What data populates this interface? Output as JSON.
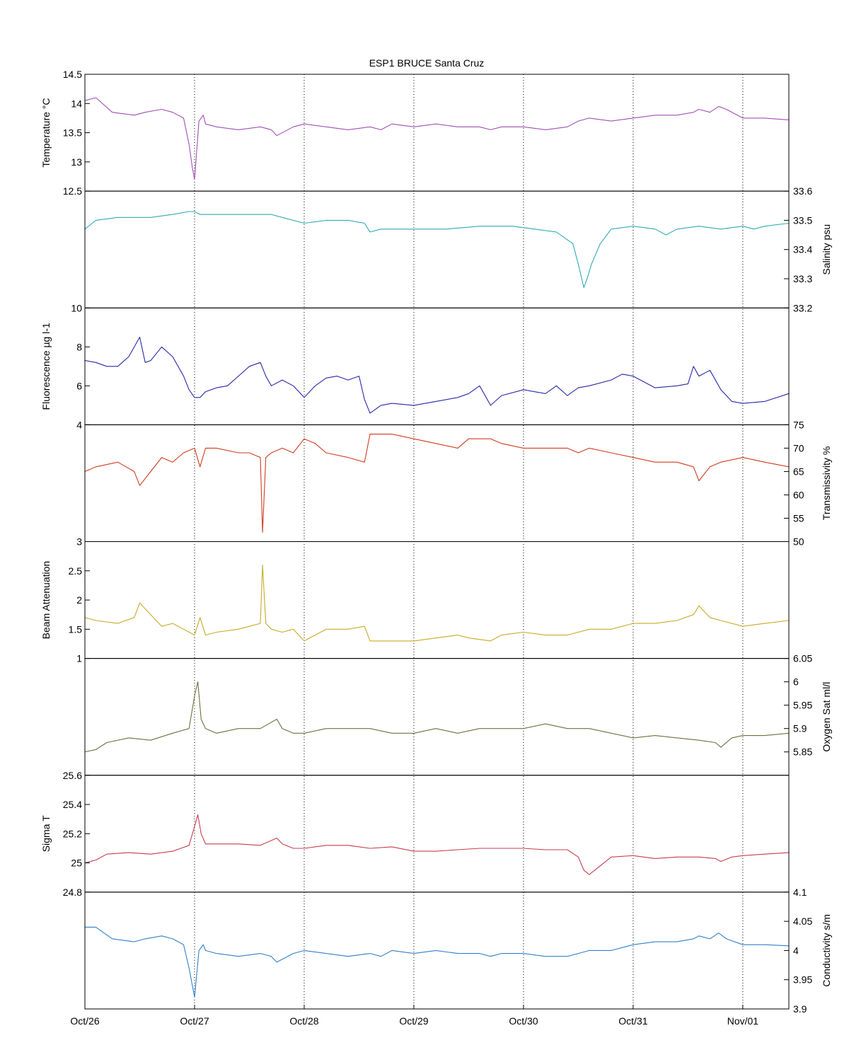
{
  "chart_data": {
    "type": "line",
    "title": "ESP1 BRUCE Santa Cruz",
    "x_tick_labels": [
      "Oct/26",
      "Oct/27",
      "Oct/28",
      "Oct/29",
      "Oct/30",
      "Oct/31",
      "Nov/01"
    ],
    "x_tick_days": [
      0,
      1,
      2,
      3,
      4,
      5,
      6
    ],
    "x_range_days": [
      0,
      6.42
    ],
    "grid": "vertical dotted lines at day ticks",
    "panels": [
      {
        "name": "temperature",
        "ylabel": "Temperature °C",
        "axis_side": "left",
        "ylim": [
          12.5,
          14.5
        ],
        "ticks": [
          12.5,
          13,
          13.5,
          14,
          14.5
        ],
        "tick_labels": [
          "12.5",
          "13",
          "13.5",
          "14",
          "14.5"
        ],
        "color": "#a050b4",
        "x": [
          0,
          0.1,
          0.25,
          0.45,
          0.55,
          0.7,
          0.8,
          0.9,
          0.95,
          0.98,
          1.0,
          1.02,
          1.04,
          1.08,
          1.1,
          1.2,
          1.4,
          1.6,
          1.7,
          1.75,
          1.9,
          2.0,
          2.2,
          2.4,
          2.6,
          2.7,
          2.8,
          3.0,
          3.2,
          3.4,
          3.6,
          3.7,
          3.8,
          4.0,
          4.2,
          4.4,
          4.5,
          4.6,
          4.8,
          5.0,
          5.2,
          5.4,
          5.55,
          5.6,
          5.7,
          5.78,
          5.85,
          6.0,
          6.2,
          6.42
        ],
        "y": [
          14.05,
          14.1,
          13.85,
          13.8,
          13.85,
          13.9,
          13.85,
          13.75,
          13.3,
          12.9,
          12.7,
          13.2,
          13.7,
          13.8,
          13.65,
          13.6,
          13.55,
          13.6,
          13.55,
          13.45,
          13.6,
          13.65,
          13.6,
          13.55,
          13.6,
          13.55,
          13.65,
          13.6,
          13.65,
          13.6,
          13.6,
          13.55,
          13.6,
          13.6,
          13.55,
          13.6,
          13.7,
          13.75,
          13.7,
          13.75,
          13.8,
          13.8,
          13.85,
          13.9,
          13.85,
          13.95,
          13.9,
          13.75,
          13.75,
          13.72
        ]
      },
      {
        "name": "salinity",
        "ylabel": "Salinity psu",
        "axis_side": "right",
        "ylim": [
          33.2,
          33.6
        ],
        "ticks": [
          33.2,
          33.3,
          33.4,
          33.5,
          33.6
        ],
        "tick_labels": [
          "33.2",
          "33.3",
          "33.4",
          "33.5",
          "33.6"
        ],
        "color": "#30aab4",
        "x": [
          0,
          0.1,
          0.3,
          0.6,
          0.8,
          0.95,
          1.0,
          1.05,
          1.2,
          1.5,
          1.7,
          1.8,
          2.0,
          2.2,
          2.4,
          2.55,
          2.6,
          2.7,
          3.0,
          3.3,
          3.6,
          3.9,
          4.1,
          4.3,
          4.45,
          4.5,
          4.55,
          4.58,
          4.62,
          4.7,
          4.8,
          5.0,
          5.2,
          5.3,
          5.4,
          5.6,
          5.8,
          6.0,
          6.1,
          6.2,
          6.42
        ],
        "y": [
          33.47,
          33.5,
          33.51,
          33.51,
          33.52,
          33.53,
          33.53,
          33.52,
          33.52,
          33.52,
          33.52,
          33.51,
          33.49,
          33.5,
          33.5,
          33.49,
          33.46,
          33.47,
          33.47,
          33.47,
          33.48,
          33.48,
          33.47,
          33.46,
          33.42,
          33.35,
          33.27,
          33.3,
          33.35,
          33.42,
          33.47,
          33.48,
          33.47,
          33.45,
          33.47,
          33.48,
          33.47,
          33.48,
          33.47,
          33.48,
          33.49
        ]
      },
      {
        "name": "fluorescence",
        "ylabel": "Fluorescence µg l-1",
        "axis_side": "left",
        "ylim": [
          4,
          10
        ],
        "ticks": [
          4,
          6,
          8,
          10
        ],
        "tick_labels": [
          "4",
          "6",
          "8",
          "10"
        ],
        "color": "#2828a8",
        "x": [
          0,
          0.1,
          0.2,
          0.3,
          0.4,
          0.5,
          0.55,
          0.6,
          0.7,
          0.8,
          0.9,
          0.95,
          1.0,
          1.05,
          1.1,
          1.2,
          1.3,
          1.4,
          1.5,
          1.6,
          1.65,
          1.7,
          1.8,
          1.9,
          2.0,
          2.1,
          2.2,
          2.3,
          2.4,
          2.5,
          2.55,
          2.6,
          2.7,
          2.8,
          3.0,
          3.2,
          3.4,
          3.5,
          3.6,
          3.7,
          3.8,
          4.0,
          4.2,
          4.3,
          4.4,
          4.5,
          4.6,
          4.8,
          4.9,
          5.0,
          5.2,
          5.4,
          5.5,
          5.55,
          5.6,
          5.7,
          5.8,
          5.9,
          6.0,
          6.2,
          6.42
        ],
        "y": [
          7.3,
          7.2,
          7.0,
          7.0,
          7.5,
          8.5,
          7.2,
          7.3,
          8.0,
          7.5,
          6.5,
          5.8,
          5.4,
          5.4,
          5.7,
          5.9,
          6.0,
          6.5,
          7.0,
          7.2,
          6.5,
          6.0,
          6.3,
          6.0,
          5.4,
          6.0,
          6.4,
          6.5,
          6.3,
          6.5,
          5.3,
          4.6,
          5.0,
          5.1,
          5.0,
          5.2,
          5.4,
          5.6,
          6.0,
          5.0,
          5.5,
          5.8,
          5.6,
          6.0,
          5.5,
          5.9,
          6.0,
          6.3,
          6.6,
          6.5,
          5.9,
          6.0,
          6.1,
          7.0,
          6.5,
          6.8,
          5.8,
          5.2,
          5.1,
          5.2,
          5.6
        ]
      },
      {
        "name": "transmissivity",
        "ylabel": "Transmissivity %",
        "axis_side": "right",
        "ylim": [
          50,
          75
        ],
        "ticks": [
          50,
          55,
          60,
          65,
          70,
          75
        ],
        "tick_labels": [
          "50",
          "55",
          "60",
          "65",
          "70",
          "75"
        ],
        "color": "#d03c20",
        "x": [
          0,
          0.1,
          0.3,
          0.45,
          0.5,
          0.6,
          0.7,
          0.8,
          0.9,
          1.0,
          1.05,
          1.1,
          1.2,
          1.4,
          1.5,
          1.6,
          1.62,
          1.65,
          1.7,
          1.8,
          1.9,
          2.0,
          2.1,
          2.2,
          2.4,
          2.55,
          2.6,
          2.7,
          2.8,
          3.0,
          3.2,
          3.4,
          3.5,
          3.7,
          3.8,
          4.0,
          4.2,
          4.4,
          4.5,
          4.6,
          4.8,
          5.0,
          5.2,
          5.4,
          5.55,
          5.6,
          5.7,
          5.8,
          6.0,
          6.2,
          6.42
        ],
        "y": [
          65,
          66,
          67,
          65,
          62,
          65,
          68,
          67,
          69,
          70,
          66,
          70,
          70,
          69,
          69,
          68,
          52,
          68,
          69,
          70,
          69,
          72,
          71,
          69,
          68,
          67,
          73,
          73,
          73,
          72,
          71,
          70,
          72,
          72,
          71,
          70,
          70,
          70,
          69,
          70,
          69,
          68,
          67,
          67,
          66,
          63,
          66,
          67,
          68,
          67,
          66
        ]
      },
      {
        "name": "beam_attenuation",
        "ylabel": "Beam Attenuation",
        "axis_side": "left",
        "ylim": [
          1,
          3
        ],
        "ticks": [
          1,
          1.5,
          2,
          2.5,
          3
        ],
        "tick_labels": [
          "1",
          "1.5",
          "2",
          "2.5",
          "3"
        ],
        "color": "#c8aa28",
        "x": [
          0,
          0.1,
          0.3,
          0.45,
          0.5,
          0.6,
          0.7,
          0.8,
          0.9,
          1.0,
          1.05,
          1.1,
          1.2,
          1.4,
          1.5,
          1.6,
          1.62,
          1.65,
          1.7,
          1.8,
          1.9,
          2.0,
          2.1,
          2.2,
          2.4,
          2.55,
          2.6,
          2.7,
          2.8,
          3.0,
          3.2,
          3.4,
          3.5,
          3.7,
          3.8,
          4.0,
          4.2,
          4.4,
          4.5,
          4.6,
          4.8,
          5.0,
          5.2,
          5.4,
          5.55,
          5.6,
          5.7,
          5.8,
          6.0,
          6.2,
          6.42
        ],
        "y": [
          1.7,
          1.65,
          1.6,
          1.7,
          1.95,
          1.75,
          1.55,
          1.6,
          1.5,
          1.4,
          1.7,
          1.4,
          1.45,
          1.5,
          1.55,
          1.6,
          2.6,
          1.6,
          1.5,
          1.45,
          1.5,
          1.3,
          1.4,
          1.5,
          1.5,
          1.55,
          1.3,
          1.3,
          1.3,
          1.3,
          1.35,
          1.4,
          1.35,
          1.3,
          1.4,
          1.45,
          1.4,
          1.4,
          1.45,
          1.5,
          1.5,
          1.6,
          1.6,
          1.65,
          1.75,
          1.9,
          1.7,
          1.65,
          1.55,
          1.6,
          1.65
        ]
      },
      {
        "name": "oxygen_sat",
        "ylabel": "Oxygen Sat ml/l",
        "axis_side": "right",
        "ylim": [
          5.8,
          6.05
        ],
        "ticks": [
          5.85,
          5.9,
          5.95,
          6,
          6.05
        ],
        "tick_labels": [
          "5.85",
          "5.9",
          "5.95",
          "6",
          "6.05"
        ],
        "color": "#707040",
        "x": [
          0,
          0.1,
          0.2,
          0.4,
          0.6,
          0.8,
          0.95,
          1.0,
          1.03,
          1.06,
          1.1,
          1.2,
          1.4,
          1.6,
          1.75,
          1.8,
          1.9,
          2.0,
          2.2,
          2.4,
          2.6,
          2.8,
          3.0,
          3.2,
          3.4,
          3.6,
          3.8,
          4.0,
          4.2,
          4.4,
          4.6,
          4.8,
          5.0,
          5.2,
          5.4,
          5.6,
          5.75,
          5.8,
          5.9,
          6.0,
          6.2,
          6.42
        ],
        "y": [
          5.85,
          5.855,
          5.87,
          5.88,
          5.875,
          5.89,
          5.9,
          5.97,
          6.0,
          5.92,
          5.9,
          5.89,
          5.9,
          5.9,
          5.92,
          5.9,
          5.89,
          5.89,
          5.9,
          5.9,
          5.9,
          5.89,
          5.89,
          5.9,
          5.89,
          5.9,
          5.9,
          5.9,
          5.91,
          5.9,
          5.9,
          5.89,
          5.88,
          5.885,
          5.88,
          5.875,
          5.87,
          5.86,
          5.88,
          5.885,
          5.885,
          5.89
        ]
      },
      {
        "name": "sigma_t",
        "ylabel": "Sigma T",
        "axis_side": "left",
        "ylim": [
          24.8,
          25.6
        ],
        "ticks": [
          24.8,
          25,
          25.2,
          25.4,
          25.6
        ],
        "tick_labels": [
          "24.8",
          "25",
          "25.2",
          "25.4",
          "25.6"
        ],
        "color": "#c83c50",
        "x": [
          0,
          0.1,
          0.2,
          0.4,
          0.6,
          0.8,
          0.95,
          1.0,
          1.03,
          1.06,
          1.1,
          1.2,
          1.4,
          1.6,
          1.75,
          1.8,
          1.9,
          2.0,
          2.2,
          2.4,
          2.6,
          2.8,
          3.0,
          3.2,
          3.4,
          3.6,
          3.8,
          4.0,
          4.2,
          4.4,
          4.5,
          4.55,
          4.6,
          4.7,
          4.8,
          5.0,
          5.2,
          5.4,
          5.6,
          5.75,
          5.8,
          5.9,
          6.0,
          6.2,
          6.42
        ],
        "y": [
          25.0,
          25.02,
          25.06,
          25.07,
          25.06,
          25.08,
          25.12,
          25.25,
          25.33,
          25.2,
          25.13,
          25.13,
          25.13,
          25.12,
          25.17,
          25.13,
          25.1,
          25.1,
          25.12,
          25.12,
          25.1,
          25.11,
          25.08,
          25.08,
          25.09,
          25.1,
          25.1,
          25.1,
          25.09,
          25.09,
          25.04,
          24.95,
          24.92,
          24.98,
          25.04,
          25.05,
          25.03,
          25.04,
          25.04,
          25.03,
          25.01,
          25.04,
          25.05,
          25.06,
          25.07
        ]
      },
      {
        "name": "conductivity",
        "ylabel": "Conductivity s/m",
        "axis_side": "right",
        "ylim": [
          3.9,
          4.1
        ],
        "ticks": [
          3.9,
          3.95,
          4,
          4.05,
          4.1
        ],
        "tick_labels": [
          "3.9",
          "3.95",
          "4",
          "4.05",
          "4.1"
        ],
        "color": "#3080c8",
        "x": [
          0,
          0.1,
          0.25,
          0.45,
          0.55,
          0.7,
          0.8,
          0.9,
          0.95,
          0.98,
          1.0,
          1.02,
          1.04,
          1.08,
          1.1,
          1.2,
          1.4,
          1.6,
          1.7,
          1.75,
          1.9,
          2.0,
          2.2,
          2.4,
          2.6,
          2.7,
          2.8,
          3.0,
          3.2,
          3.4,
          3.6,
          3.7,
          3.8,
          4.0,
          4.2,
          4.4,
          4.5,
          4.6,
          4.8,
          5.0,
          5.2,
          5.4,
          5.55,
          5.6,
          5.7,
          5.78,
          5.85,
          6.0,
          6.2,
          6.42
        ],
        "y": [
          4.04,
          4.04,
          4.02,
          4.015,
          4.02,
          4.025,
          4.02,
          4.01,
          3.97,
          3.94,
          3.92,
          3.96,
          4.0,
          4.01,
          4.0,
          3.995,
          3.99,
          3.995,
          3.99,
          3.98,
          3.995,
          4.0,
          3.995,
          3.99,
          3.995,
          3.99,
          4.0,
          3.995,
          4.0,
          3.995,
          3.995,
          3.99,
          3.995,
          3.995,
          3.99,
          3.99,
          3.995,
          4.0,
          4.0,
          4.01,
          4.015,
          4.015,
          4.02,
          4.025,
          4.02,
          4.03,
          4.02,
          4.01,
          4.01,
          4.008
        ]
      }
    ]
  }
}
